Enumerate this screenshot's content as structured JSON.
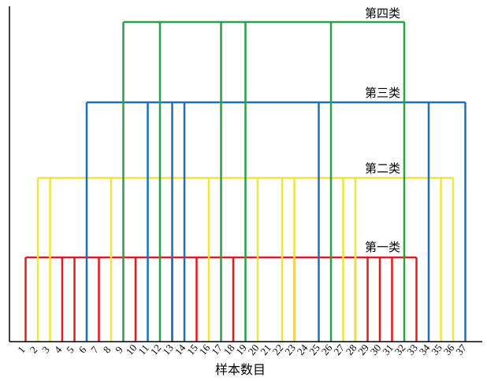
{
  "chart_data": {
    "type": "dendrogram",
    "xlabel": "样本数目",
    "ylabel": "",
    "x": [
      1,
      2,
      3,
      4,
      5,
      6,
      7,
      8,
      9,
      10,
      11,
      12,
      13,
      14,
      15,
      16,
      17,
      18,
      19,
      20,
      21,
      22,
      23,
      24,
      25,
      26,
      27,
      28,
      29,
      30,
      31,
      32,
      33,
      34,
      35,
      36,
      37
    ],
    "grid": false,
    "levels": [
      {
        "name": "第一类",
        "color": "#e41a1c",
        "members": [
          1,
          4,
          5,
          7,
          10,
          13,
          15,
          18,
          23,
          28,
          29,
          30,
          31,
          33
        ]
      },
      {
        "name": "第二类",
        "color": "#f0e442",
        "members": [
          2,
          3,
          8,
          16,
          20,
          22,
          23,
          27,
          28,
          35,
          36
        ]
      },
      {
        "name": "第三类",
        "color": "#1f6fb8",
        "members": [
          6,
          11,
          13,
          14,
          25,
          34,
          37
        ]
      },
      {
        "name": "第四类",
        "color": "#2ca048",
        "members": [
          9,
          12,
          17,
          19,
          26,
          32
        ]
      }
    ],
    "axis_color": "#000000"
  }
}
